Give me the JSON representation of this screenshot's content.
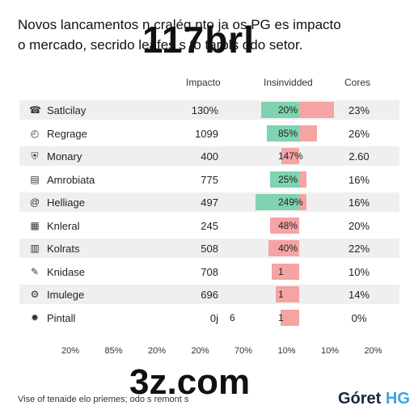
{
  "title_lines": [
    "Novos lancamentos n cralég nto ja os PG es impacto",
    "o mercado, secrido leafes s to tarols ddo setor."
  ],
  "overlay_top": "117brl",
  "overlay_mid": "3z.com",
  "footer": "Vise of tenaide elo priemes; odo s remont s",
  "logo": {
    "main": "Góret ",
    "accent": "HG"
  },
  "colors": {
    "green": "#7fd3ae",
    "red": "#f5a3a3",
    "row_shade": "#efefef"
  },
  "chart_data": {
    "type": "table",
    "columns": [
      "Impacto",
      "Insinvidded",
      "Cores"
    ],
    "rows": [
      {
        "icon": "phone-icon",
        "label": "Satlcilay",
        "impacto": "130%",
        "bar_label": "20%",
        "green": 0.26,
        "red": 0.24,
        "cores": "23%"
      },
      {
        "icon": "clock-icon",
        "label": "Regrage",
        "impacto": "1099",
        "bar_label": "85%",
        "green": 0.22,
        "red": 0.12,
        "cores": "26%"
      },
      {
        "icon": "shield-icon",
        "label": "Monary",
        "impacto": "400",
        "bar_label": "147%",
        "green": 0.0,
        "red": 0.12,
        "cores": "2.60"
      },
      {
        "icon": "layers-icon",
        "label": "Amrobiata",
        "impacto": "775",
        "bar_label": "25%",
        "green": 0.2,
        "red": 0.05,
        "cores": "16%"
      },
      {
        "icon": "swirl-icon",
        "label": "Helliage",
        "impacto": "497",
        "bar_label": "249%",
        "green": 0.3,
        "red": 0.05,
        "cores": "16%"
      },
      {
        "icon": "document-icon",
        "label": "Knleral",
        "impacto": "245",
        "bar_label": "48%",
        "green": 0.0,
        "red": 0.2,
        "cores": "20%"
      },
      {
        "icon": "chart-icon",
        "label": "Kolrats",
        "impacto": "508",
        "bar_label": "40%",
        "green": 0.0,
        "red": 0.21,
        "cores": "22%"
      },
      {
        "icon": "pencil-icon",
        "label": "Knidase",
        "impacto": "708",
        "bar_label": "1",
        "green": 0.0,
        "red": 0.19,
        "cores": "10%"
      },
      {
        "icon": "gear-icon",
        "label": "Imulege",
        "impacto": "696",
        "bar_label": "1",
        "green": 0.0,
        "red": 0.16,
        "cores": "14%"
      },
      {
        "icon": "sun-icon",
        "label": "Pintall",
        "impacto": "0j",
        "bar_label": "1",
        "extra_label": "6",
        "green": 0.0,
        "red": 0.13,
        "cores": "0%"
      }
    ],
    "x_ticks": [
      "20%",
      "85%",
      "20%",
      "20%",
      "70%",
      "10%",
      "10%",
      "20%"
    ]
  }
}
